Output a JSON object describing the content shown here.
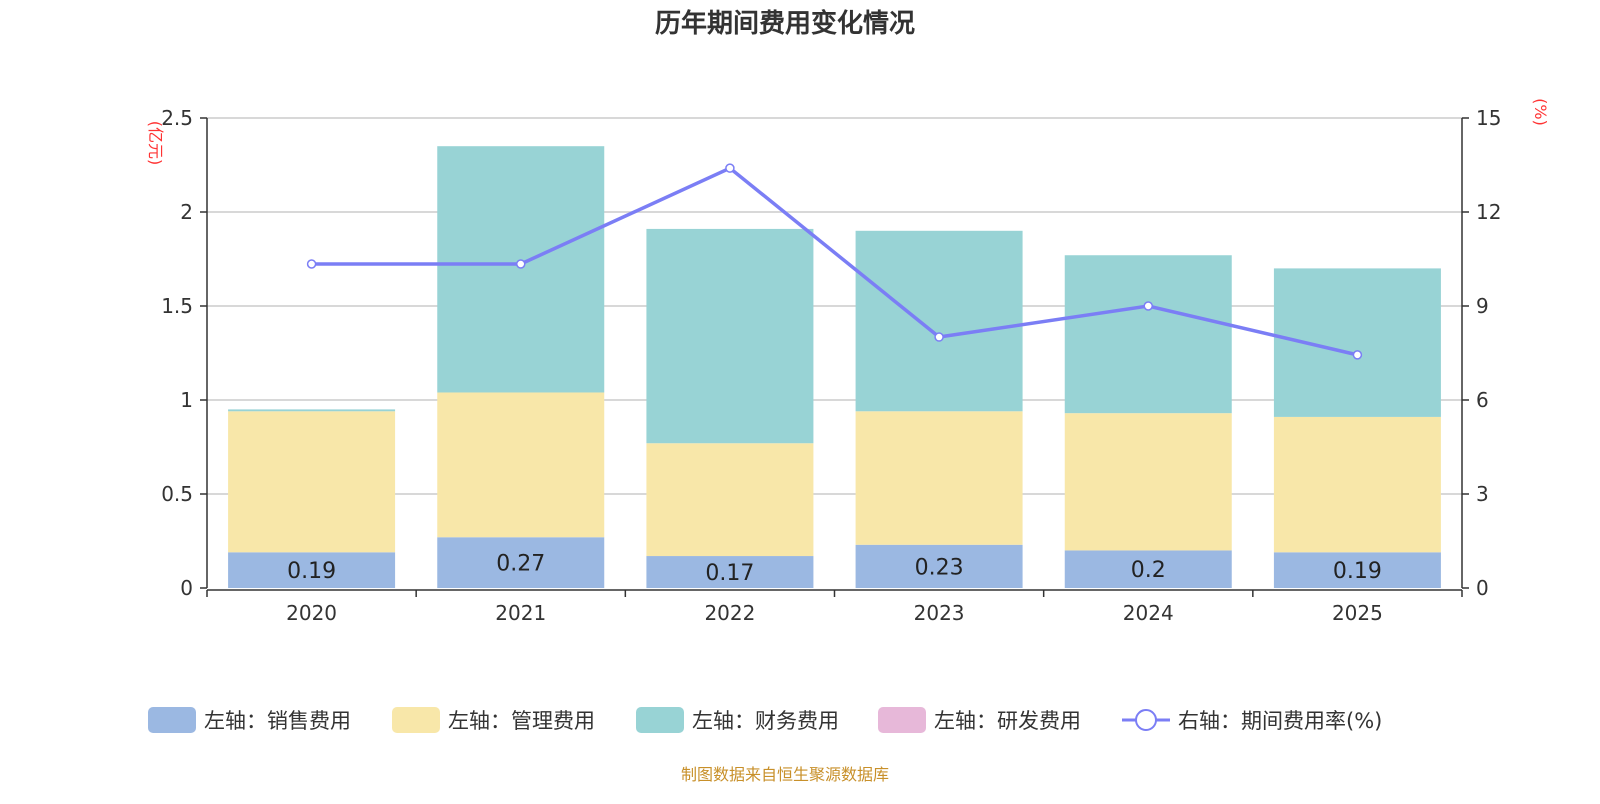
{
  "chart_data": {
    "type": "bar",
    "stacked": true,
    "title": "历年期间费用变化情况",
    "categories": [
      "2020",
      "2021",
      "2022",
      "2023",
      "2024",
      "2025"
    ],
    "left_axis": {
      "label": "(亿元)",
      "ylim": [
        0,
        2.5
      ],
      "ticks": [
        "0",
        "0.5",
        "1",
        "1.5",
        "2",
        "2.5"
      ]
    },
    "right_axis": {
      "label": "(%)",
      "ylim": [
        0,
        15
      ],
      "ticks": [
        "0",
        "3",
        "6",
        "9",
        "12",
        "15"
      ]
    },
    "grid": true,
    "legend_position": "bottom",
    "series": [
      {
        "name": "左轴：销售费用",
        "axis": "left",
        "type": "bar",
        "color": "#9bb8e2",
        "values": [
          0.19,
          0.27,
          0.17,
          0.23,
          0.2,
          0.19
        ],
        "labels": [
          "0.19",
          "0.27",
          "0.17",
          "0.23",
          "0.2",
          "0.19"
        ]
      },
      {
        "name": "左轴：管理费用",
        "axis": "left",
        "type": "bar",
        "color": "#f8e7a9",
        "values": [
          0.75,
          0.77,
          0.6,
          0.71,
          0.73,
          0.72
        ]
      },
      {
        "name": "左轴：财务费用",
        "axis": "left",
        "type": "bar",
        "color": "#98d3d5",
        "values": [
          0.01,
          1.31,
          1.14,
          0.96,
          0.84,
          0.79
        ]
      },
      {
        "name": "左轴：研发费用",
        "axis": "left",
        "type": "bar",
        "color": "#e7b8d9",
        "values": [
          0,
          0,
          0,
          0,
          0,
          0
        ]
      },
      {
        "name": "右轴：期间费用率(%)",
        "axis": "right",
        "type": "line",
        "color": "#7b7ef5",
        "values": [
          10.34,
          10.34,
          13.4,
          8.01,
          9.0,
          7.44
        ]
      }
    ]
  },
  "footer": "制图数据来自恒生聚源数据库",
  "colors": {
    "axis_label": "#ff3333",
    "footer": "#c8902a"
  }
}
